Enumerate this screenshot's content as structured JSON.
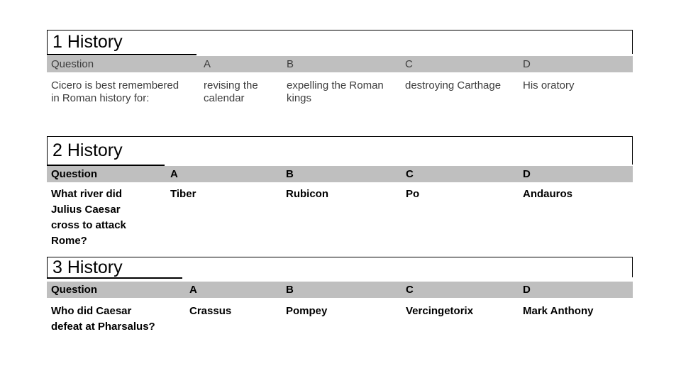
{
  "colors": {
    "header_bg": "#bfbfbf",
    "border": "#000000",
    "table1_text": "#3d3d3d",
    "bold_text": "#000000",
    "background": "#ffffff"
  },
  "tables": [
    {
      "title": "1 History",
      "headers": [
        "Question",
        "A",
        "B",
        "C",
        "D"
      ],
      "row": [
        "Cicero is best remembered\nin Roman history for:",
        "revising the\ncalendar",
        "expelling the Roman\nkings",
        "destroying Carthage",
        "His oratory"
      ]
    },
    {
      "title": "2 History",
      "headers": [
        "Question",
        "A",
        "B",
        "C",
        "D"
      ],
      "row": [
        "What river did\nJulius Caesar\ncross to attack\nRome?",
        "Tiber",
        "Rubicon",
        "Po",
        "Andauros"
      ]
    },
    {
      "title": "3 History",
      "headers": [
        "Question",
        "A",
        "B",
        "C",
        "D"
      ],
      "row": [
        "Who did Caesar\ndefeat at Pharsalus?",
        "Crassus",
        "Pompey",
        "Vercingetorix",
        "Mark Anthony"
      ]
    }
  ]
}
